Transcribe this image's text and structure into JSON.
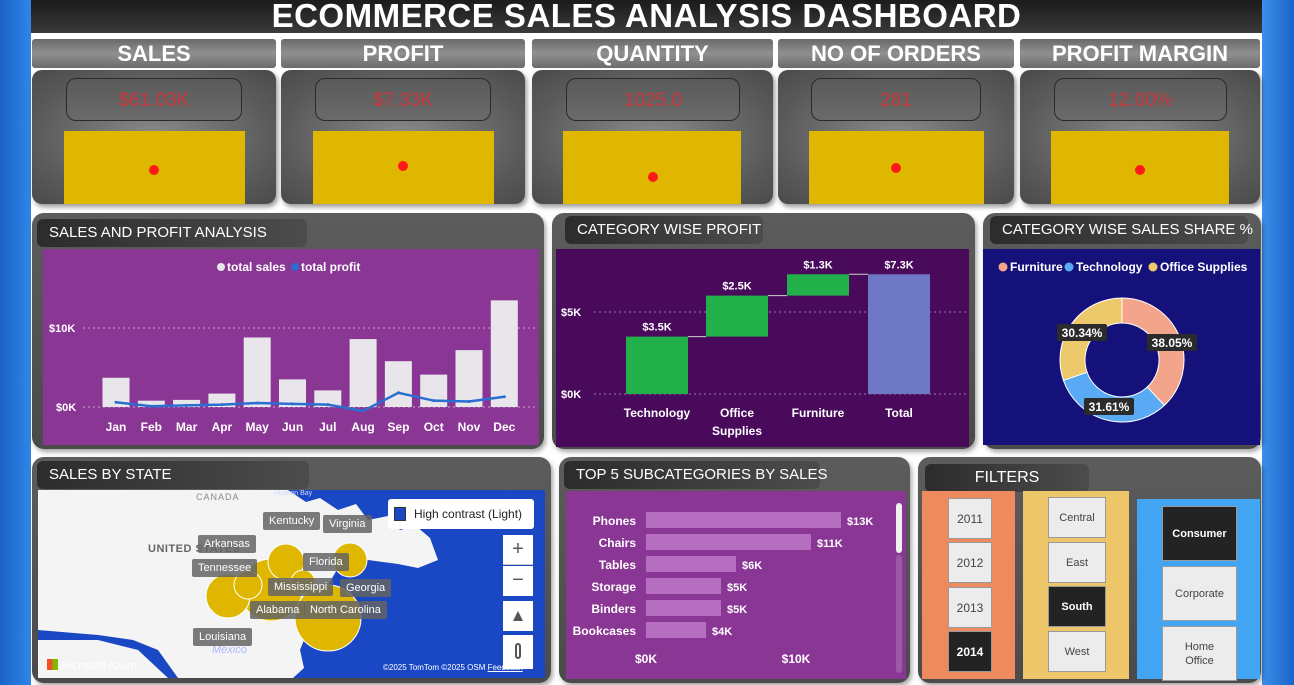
{
  "title": "ECOMMERCE SALES ANALYSIS DASHBOARD",
  "kpis": [
    {
      "label": "SALES",
      "value": "$61.03K"
    },
    {
      "label": "PROFIT",
      "value": "$7.33K"
    },
    {
      "label": "QUANTITY",
      "value": "1025.0"
    },
    {
      "label": "NO OF ORDERS",
      "value": "281"
    },
    {
      "label": "PROFIT MARGIN",
      "value": "12.00%"
    }
  ],
  "sales_profit": {
    "title": "SALES AND PROFIT ANALYSIS",
    "legend": [
      "total sales",
      "total profit"
    ],
    "y_ticks": [
      "$10K",
      "$0K"
    ],
    "chart_data": {
      "type": "bar",
      "categories": [
        "Jan",
        "Feb",
        "Mar",
        "Apr",
        "May",
        "Jun",
        "Jul",
        "Aug",
        "Sep",
        "Oct",
        "Nov",
        "Dec"
      ],
      "series": [
        {
          "name": "total sales",
          "values": [
            3700,
            800,
            900,
            1700,
            8800,
            3500,
            2100,
            8600,
            5800,
            4100,
            7200,
            13500
          ]
        },
        {
          "name": "total profit",
          "values": [
            600,
            100,
            200,
            300,
            500,
            400,
            300,
            -500,
            1800,
            800,
            700,
            1300
          ]
        }
      ],
      "ylim": [
        -1000,
        16000
      ]
    }
  },
  "category_profit": {
    "title": "CATEGORY WISE PROFIT",
    "y_ticks": [
      "$5K",
      "$0K"
    ],
    "chart_data": {
      "type": "bar",
      "categories": [
        "Technology",
        "Office Supplies",
        "Furniture",
        "Total"
      ],
      "values": [
        3.5,
        2.5,
        1.3,
        7.3
      ],
      "labels": [
        "$3.5K",
        "$2.5K",
        "$1.3K",
        "$7.3K"
      ],
      "ylim": [
        0,
        7.5
      ]
    }
  },
  "sales_share": {
    "title": "CATEGORY WISE SALES SHARE %",
    "legend": [
      {
        "name": "Furniture",
        "color": "#f2a58a"
      },
      {
        "name": "Technology",
        "color": "#5aa9f5"
      },
      {
        "name": "Office Supplies",
        "color": "#ecca6c"
      }
    ],
    "chart_data": {
      "type": "pie",
      "categories": [
        "Furniture",
        "Technology",
        "Office Supplies"
      ],
      "values": [
        38.05,
        31.61,
        30.34
      ],
      "labels": [
        "38.05%",
        "31.61%",
        "30.34%"
      ]
    }
  },
  "state_map": {
    "title": "SALES BY STATE",
    "style_button": "High contrast (Light)",
    "country_labels": [
      "CANADA",
      "UNITED STATES",
      "Mexico"
    ],
    "water_label": "Hudson Bay",
    "states": [
      "Kentucky",
      "Virginia",
      "Arkansas",
      "Tennessee",
      "Florida",
      "Mississippi",
      "Georgia",
      "Alabama",
      "North Carolina",
      "Louisiana"
    ],
    "attribution": "Microsoft Azure",
    "copyright": "©2025 TomTom ©2025 OSM",
    "feedback": "Feedback",
    "zoom_in": "+",
    "zoom_out": "−"
  },
  "subcategories": {
    "title": "TOP 5 SUBCATEGORIES BY SALES",
    "x_ticks": [
      "$0K",
      "$10K"
    ],
    "chart_data": {
      "type": "bar",
      "categories": [
        "Phones",
        "Chairs",
        "Tables",
        "Storage",
        "Binders",
        "Bookcases"
      ],
      "values": [
        13,
        11,
        6,
        5,
        5,
        4
      ],
      "labels": [
        "$13K",
        "$11K",
        "$6K",
        "$5K",
        "$5K",
        "$4K"
      ],
      "xlim": [
        0,
        17
      ]
    }
  },
  "filters": {
    "title": "FILTERS",
    "years": [
      "2011",
      "2012",
      "2013",
      "2014"
    ],
    "selected_year": "2014",
    "regions": [
      "Central",
      "East",
      "South",
      "West"
    ],
    "selected_region": "South",
    "segments": [
      "Consumer",
      "Corporate",
      "Home Office"
    ],
    "selected_segment": "Consumer"
  },
  "colors": {
    "kpi_value": "#c8383c",
    "kpi_block": "#dfb600",
    "purple_panel": "#8a3695",
    "dark_purple_panel": "#4a0a5c",
    "navy_panel": "#14127a",
    "profit_bar": "#22b04a",
    "total_bar": "#6e78c4"
  }
}
